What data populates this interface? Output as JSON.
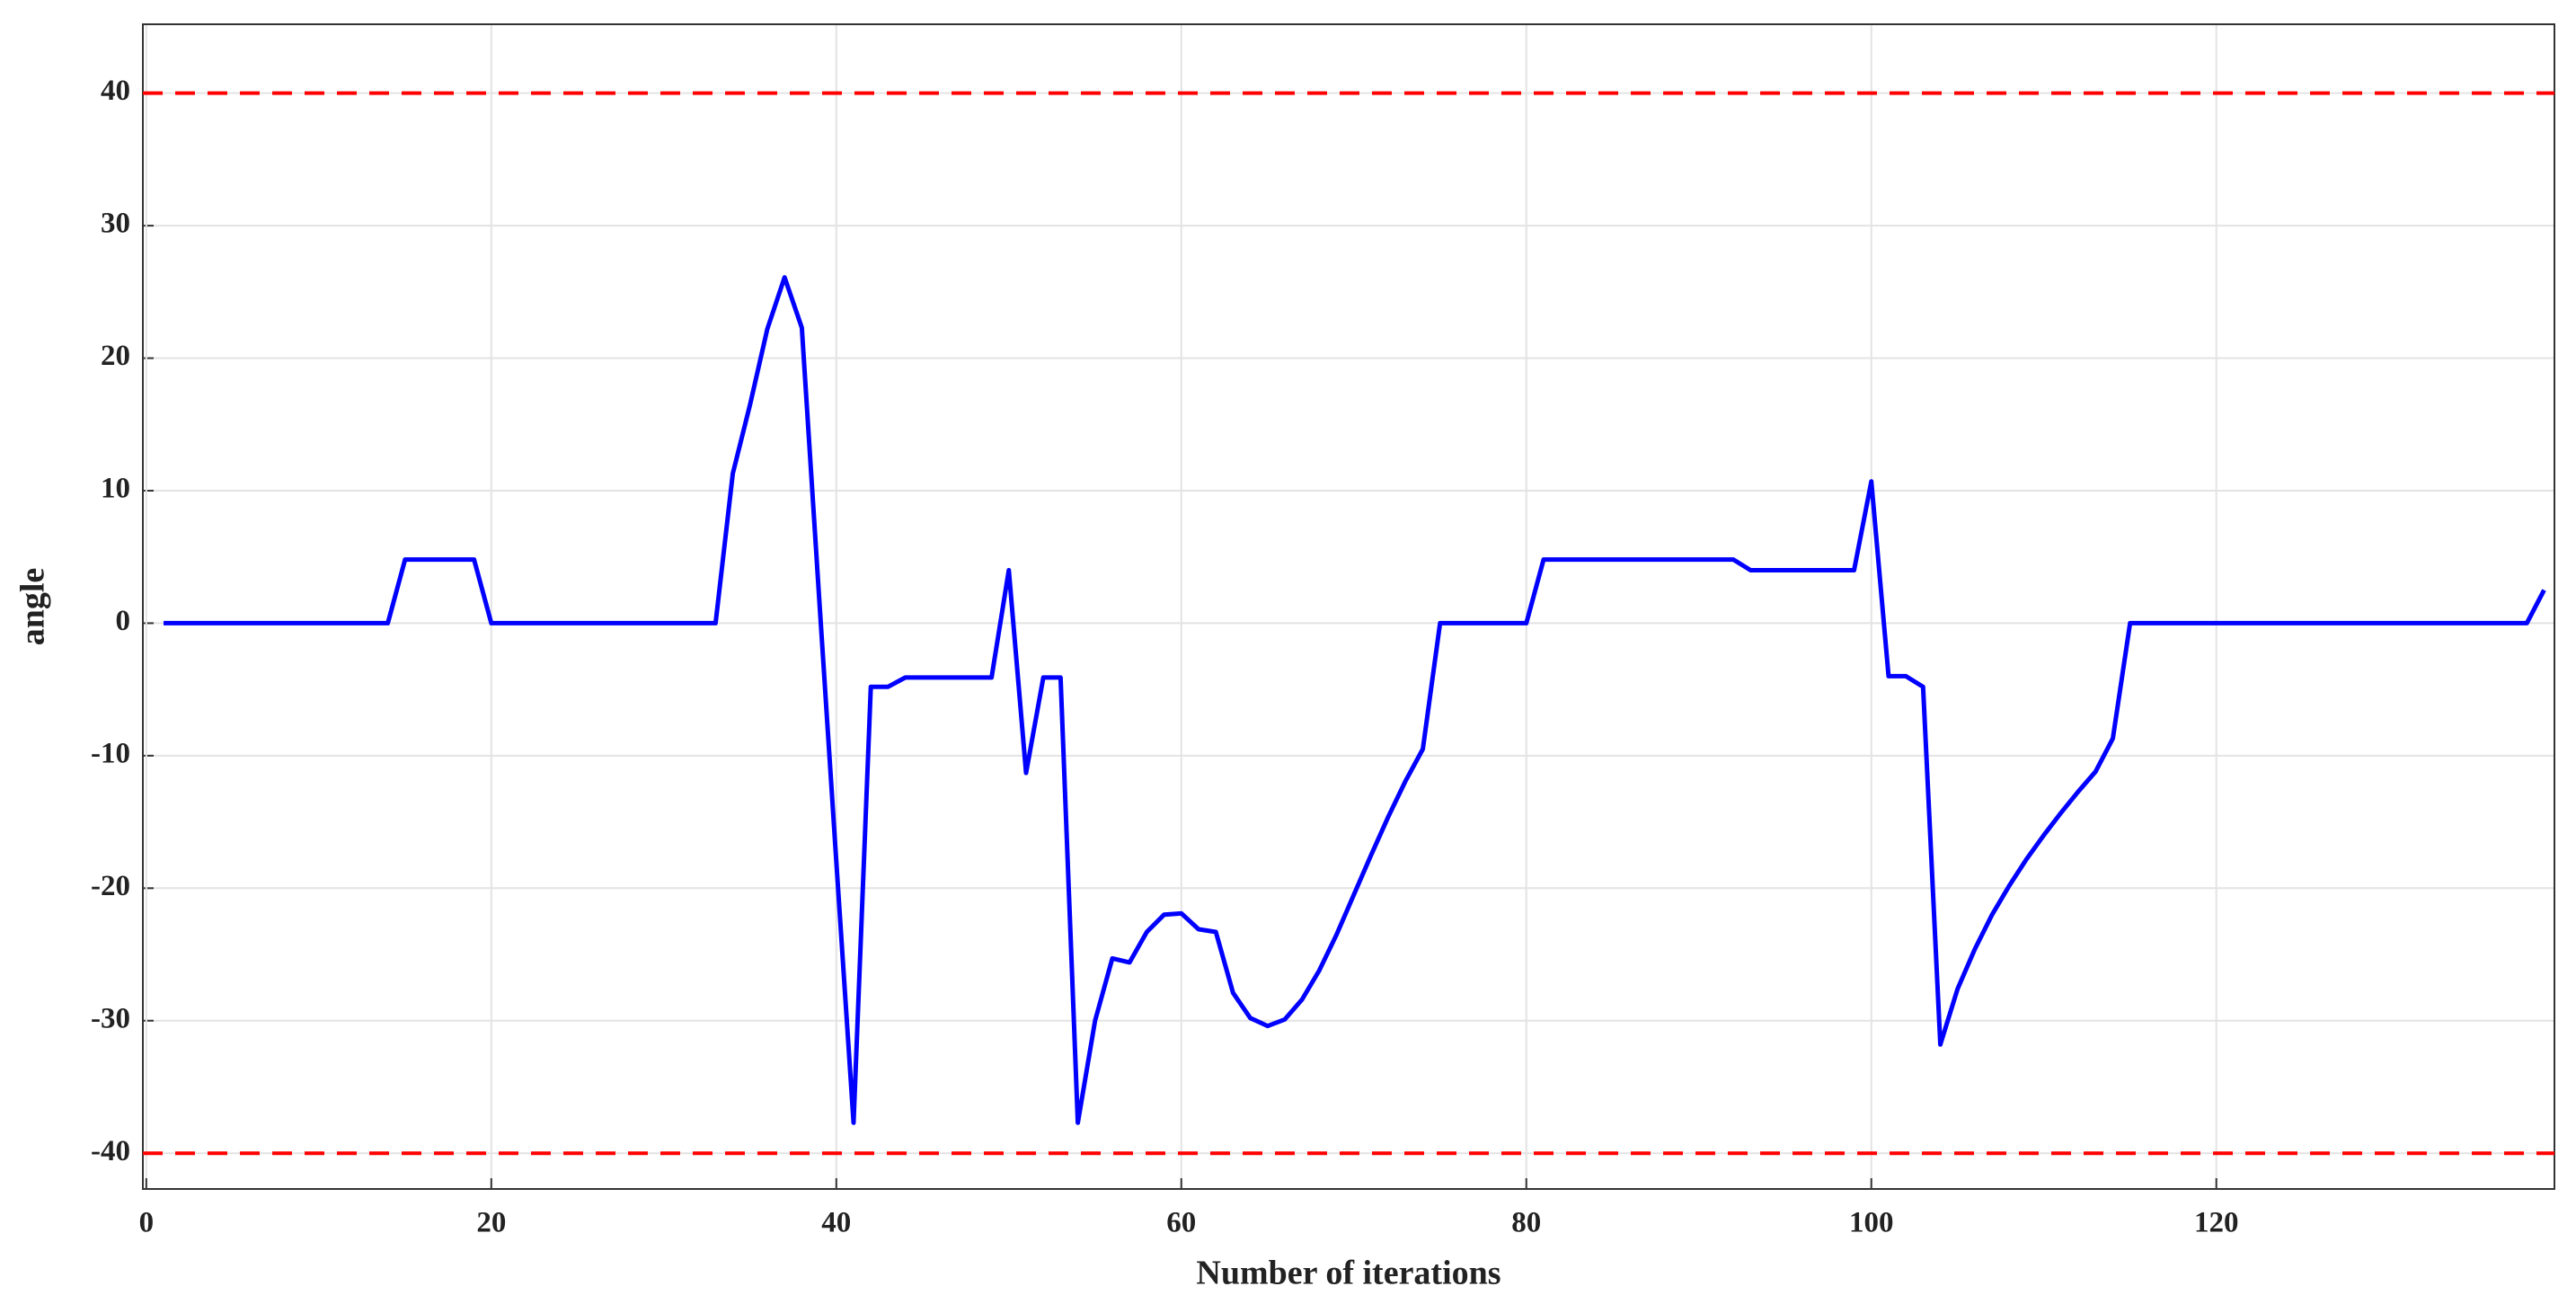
{
  "chart_data": {
    "type": "line",
    "x_label": "Number of iterations",
    "y_label": "angle",
    "x": [
      1,
      2,
      3,
      4,
      5,
      6,
      7,
      8,
      9,
      10,
      11,
      12,
      13,
      14,
      15,
      16,
      17,
      18,
      19,
      20,
      21,
      22,
      23,
      24,
      25,
      26,
      27,
      28,
      29,
      30,
      31,
      32,
      33,
      34,
      35,
      36,
      37,
      38,
      39,
      40,
      41,
      42,
      43,
      44,
      45,
      46,
      47,
      48,
      49,
      50,
      51,
      52,
      53,
      54,
      55,
      56,
      57,
      58,
      59,
      60,
      61,
      62,
      63,
      64,
      65,
      66,
      67,
      68,
      69,
      70,
      71,
      72,
      73,
      74,
      75,
      76,
      77,
      78,
      79,
      80,
      81,
      82,
      83,
      84,
      85,
      86,
      87,
      88,
      89,
      90,
      91,
      92,
      93,
      94,
      95,
      96,
      97,
      98,
      99,
      100,
      101,
      102,
      103,
      104,
      105,
      106,
      107,
      108,
      109,
      110,
      111,
      112,
      113,
      114,
      115,
      116,
      117,
      118,
      119,
      120,
      121,
      122,
      123,
      124,
      125,
      126,
      127,
      128,
      129,
      130,
      131,
      132,
      133,
      134,
      135,
      136,
      137,
      138,
      139
    ],
    "series": [
      {
        "name": "angle",
        "color": "#0000ff",
        "values": [
          0,
          0,
          0,
          0,
          0,
          0,
          0,
          0,
          0,
          0,
          0,
          0,
          0,
          0,
          4.8,
          4.8,
          4.8,
          4.8,
          4.8,
          0,
          0,
          0,
          0,
          0,
          0,
          0,
          0,
          0,
          0,
          0,
          0,
          0,
          0,
          11.3,
          16.5,
          22.2,
          26.1,
          22.3,
          2,
          -18,
          -37.7,
          -4.8,
          -4.8,
          -4.1,
          -4.1,
          -4.1,
          -4.1,
          -4.1,
          -4.1,
          4,
          -11.3,
          -4.1,
          -4.1,
          -37.7,
          -30,
          -25.3,
          -25.6,
          -23.3,
          -22,
          -21.9,
          -23.1,
          -23.3,
          -27.9,
          -29.8,
          -30.4,
          -29.9,
          -28.4,
          -26.2,
          -23.5,
          -20.5,
          -17.5,
          -14.6,
          -11.9,
          -9.5,
          0,
          0,
          0,
          0,
          0,
          0,
          4.8,
          4.8,
          4.8,
          4.8,
          4.8,
          4.8,
          4.8,
          4.8,
          4.8,
          4.8,
          4.8,
          4.8,
          4,
          4,
          4,
          4,
          4,
          4,
          4,
          10.7,
          -4,
          -4,
          -4.8,
          -31.8,
          -27.6,
          -24.6,
          -22,
          -19.8,
          -17.8,
          -16,
          -14.3,
          -12.7,
          -11.2,
          -8.7,
          0,
          0,
          0,
          0,
          0,
          0,
          0,
          0,
          0,
          0,
          0,
          0,
          0,
          0,
          0,
          0,
          0,
          0,
          0,
          0,
          0,
          0,
          0,
          0,
          2.5
        ]
      }
    ],
    "reference_lines": {
      "values": [
        40,
        -40
      ],
      "color": "#ff0000"
    },
    "xlim": [
      -0.2,
      139.6
    ],
    "ylim": [
      -42.7,
      45.2
    ],
    "xticks": [
      0,
      20,
      40,
      60,
      80,
      100,
      120
    ],
    "yticks": [
      -40,
      -30,
      -20,
      -10,
      0,
      10,
      20,
      30,
      40
    ],
    "grid": true
  }
}
